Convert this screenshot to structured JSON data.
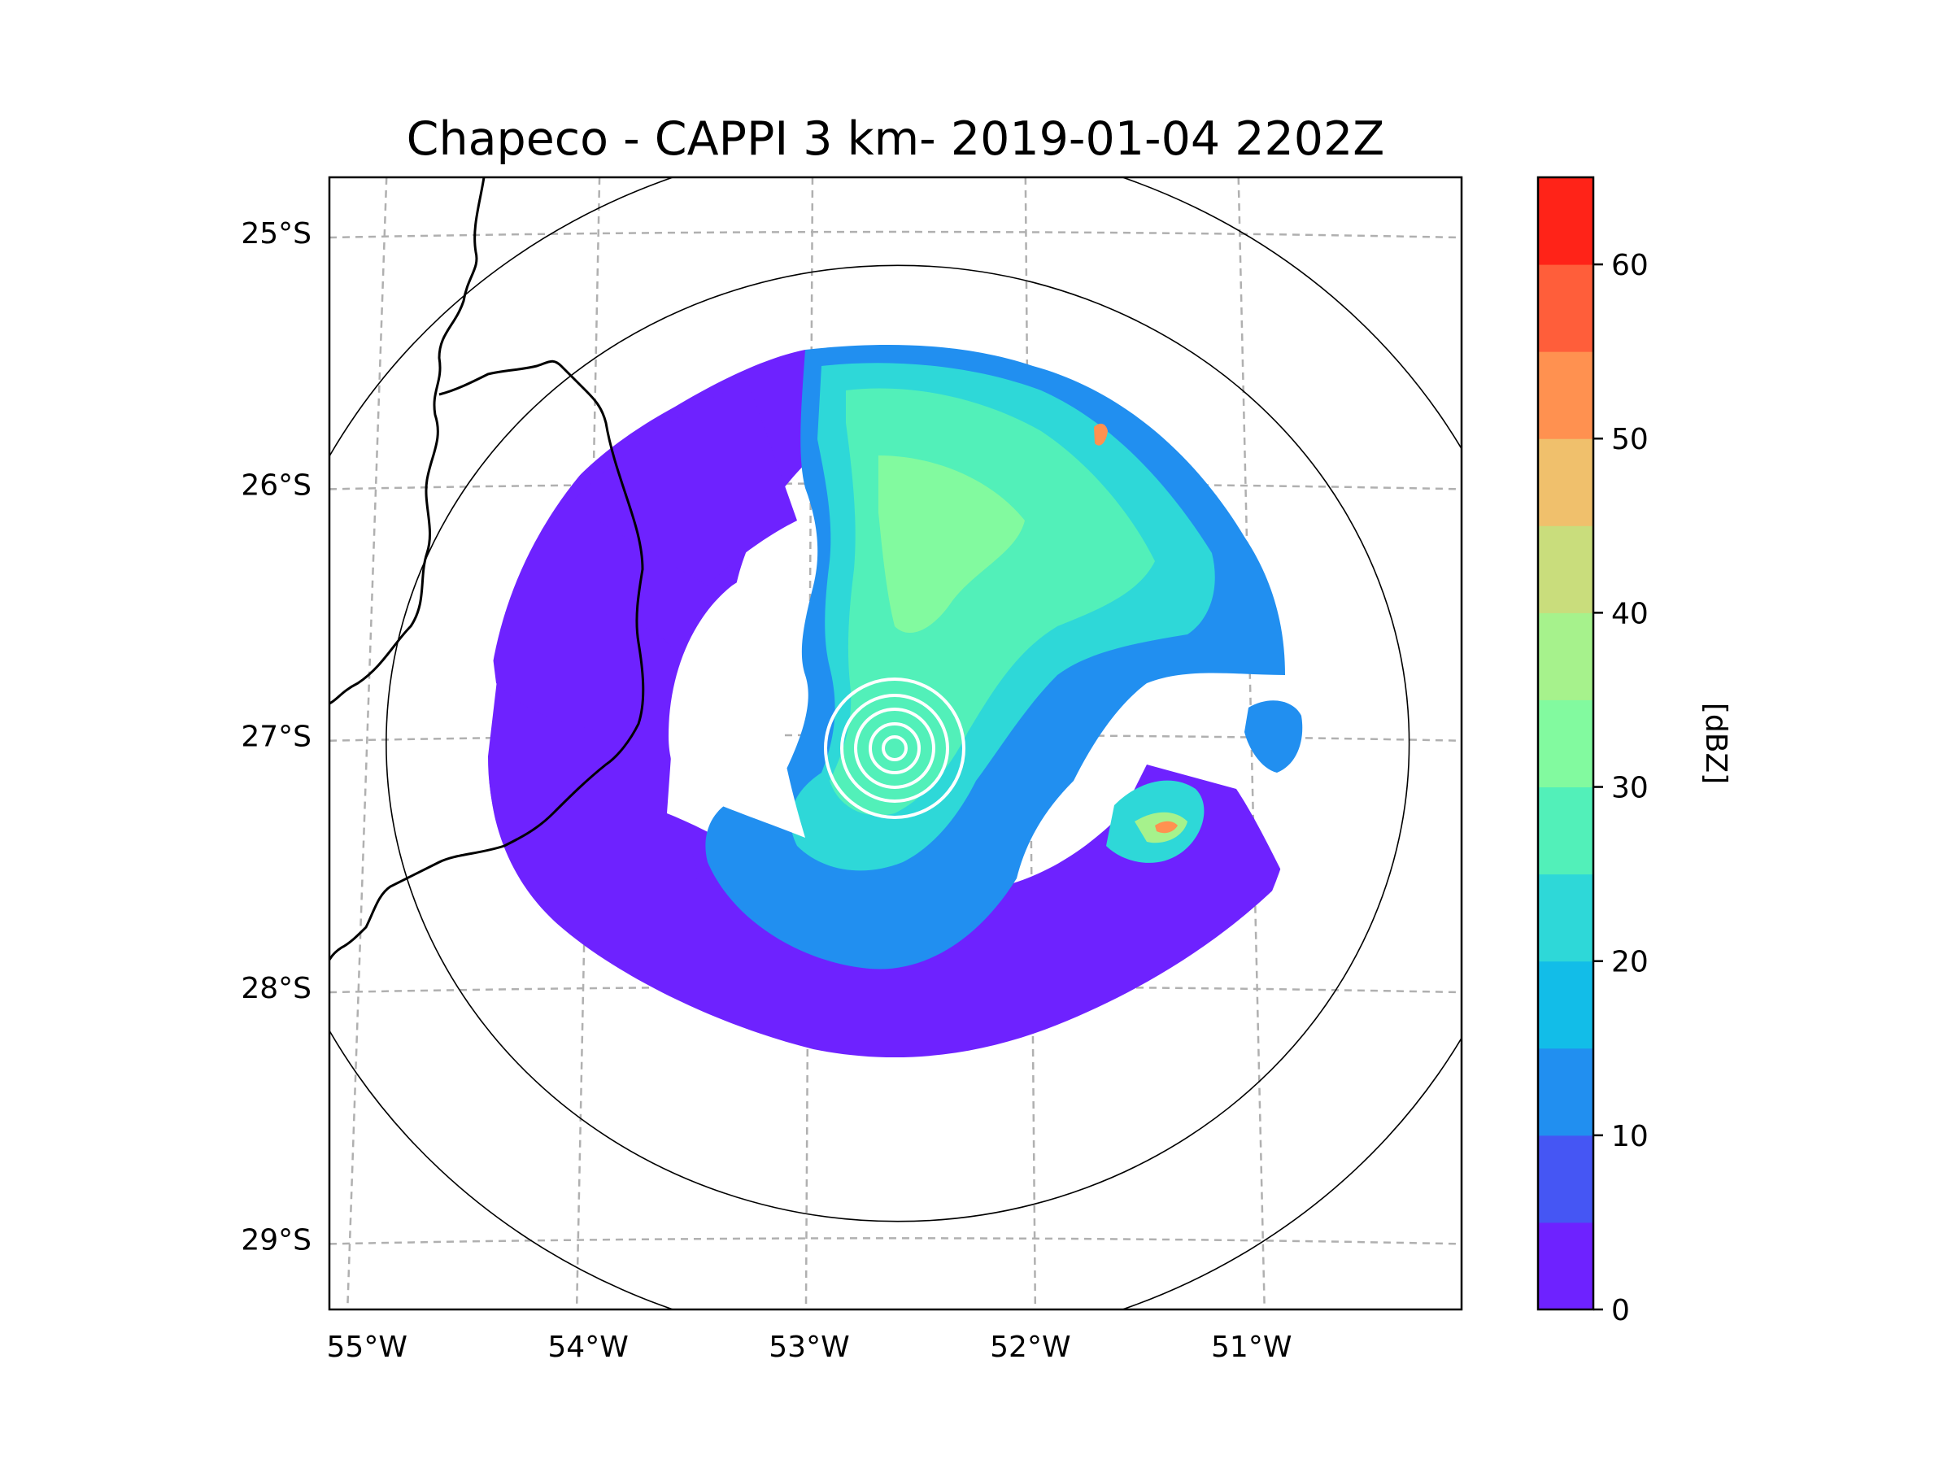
{
  "title": "Chapeco - CAPPI 3 km- 2019-01-04 2202Z",
  "map": {
    "lat_labels": [
      "25°S",
      "26°S",
      "27°S",
      "28°S",
      "29°S"
    ],
    "lon_labels": [
      "55°W",
      "54°W",
      "53°W",
      "52°W",
      "51°W"
    ],
    "lat_values": [
      -25,
      -26,
      -27,
      -28,
      -29
    ],
    "lon_values": [
      -55,
      -54,
      -53,
      -52,
      -51
    ],
    "lon_range": [
      -55.17,
      -50.05
    ],
    "lat_range": [
      -29.28,
      -24.78
    ],
    "radar_site": {
      "lon": -52.6,
      "lat": -27.03
    },
    "range_rings_deg": [
      1.9,
      2.4
    ]
  },
  "colorbar": {
    "label": "[dBZ]",
    "min": 0,
    "max": 65,
    "tick_values": [
      0,
      10,
      20,
      30,
      40,
      50,
      60
    ],
    "tick_labels": [
      "0",
      "10",
      "20",
      "30",
      "40",
      "50",
      "60"
    ],
    "bands": [
      "#6e22ff",
      "#4556f4",
      "#218ff0",
      "#12bde8",
      "#2ed8d8",
      "#52f0b9",
      "#82fa9f",
      "#a6f28c",
      "#c9dd7c",
      "#f0c06c",
      "#ff9150",
      "#ff5e3a",
      "#ff2318"
    ]
  }
}
